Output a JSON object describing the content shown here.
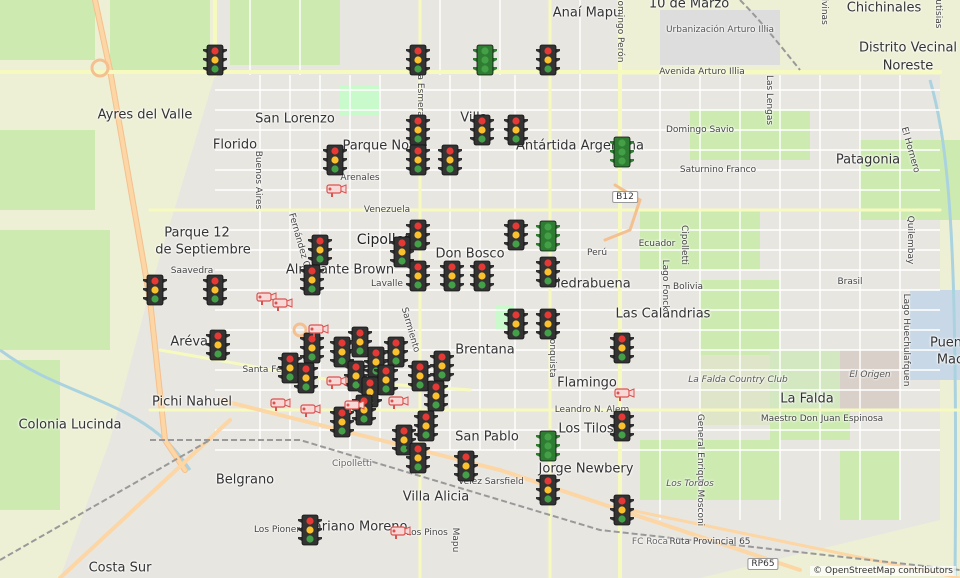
{
  "map": {
    "districts": [
      {
        "name": "Ayres del Valle"
      },
      {
        "name": "San Lorenzo"
      },
      {
        "name": "Florido"
      },
      {
        "name": "Parque 12"
      },
      {
        "name": "de Septiembre"
      },
      {
        "name": "Parque Norte"
      },
      {
        "name": "Villa"
      },
      {
        "name": "Antártida Argentina"
      },
      {
        "name": "Patagonia"
      },
      {
        "name": "Distrito Vecinal"
      },
      {
        "name": "Noreste"
      },
      {
        "name": "Almirante Brown"
      },
      {
        "name": "Don Bosco"
      },
      {
        "name": "Piedrabuena"
      },
      {
        "name": "Las Calandrias"
      },
      {
        "name": "Arévalo"
      },
      {
        "name": "Brentana"
      },
      {
        "name": "Flamingo"
      },
      {
        "name": "Pichi Nahuel"
      },
      {
        "name": "Colonia Lucinda"
      },
      {
        "name": "San Pablo"
      },
      {
        "name": "Los Tilos"
      },
      {
        "name": "Jorge Newbery"
      },
      {
        "name": "Belgrano"
      },
      {
        "name": "Villa Alicia"
      },
      {
        "name": "Mariano Moreno"
      },
      {
        "name": "Costa Sur"
      },
      {
        "name": "La Falda"
      },
      {
        "name": "Anaí Mapu"
      },
      {
        "name": "10 de Marzo"
      },
      {
        "name": "Chichinales"
      },
      {
        "name": "Puen"
      },
      {
        "name": "Mac"
      }
    ],
    "city_label": "Cipolletti",
    "streets": [
      "Avenida Arturo Illia",
      "Domingo Savio",
      "Saturnino Franco",
      "Arenales",
      "Venezuela",
      "Perú",
      "Ecuador",
      "Bolivia",
      "Brasil",
      "Saavedra",
      "Lavalle",
      "Maestro Don Juan Espinosa",
      "Leandro N. Alem",
      "Los Pinos",
      "Los Pioneros",
      "Ruta Provincial 65",
      "Vélez Sarsfield",
      "Santa Fe",
      "Buenos Aires",
      "La Esmeralda",
      "Sarmiento",
      "Fernández Oro",
      "Las Lengas",
      "Lago Fonck",
      "Domingo Perón",
      "Quilembay",
      "Lago Huechulafquen",
      "General Enrique Mosconi",
      "Malvinas",
      "El Hornero",
      "Brasil",
      "Mapu",
      "Cipolletti",
      "Mutisias",
      "Reconquista"
    ],
    "place_labels": [
      "Urbanización Arturo Illia",
      "La Falda Country Club",
      "El Origen",
      "Los Tordos",
      "Cipolletti",
      "FC Roca"
    ],
    "route_shields": [
      "B12",
      "RP65"
    ],
    "traffic_light_states": [
      "red",
      "green"
    ],
    "camera_icon": "speed-camera-icon",
    "traffic_light_icon": "traffic-light-icon",
    "attribution": "© OpenStreetMap contributors"
  }
}
